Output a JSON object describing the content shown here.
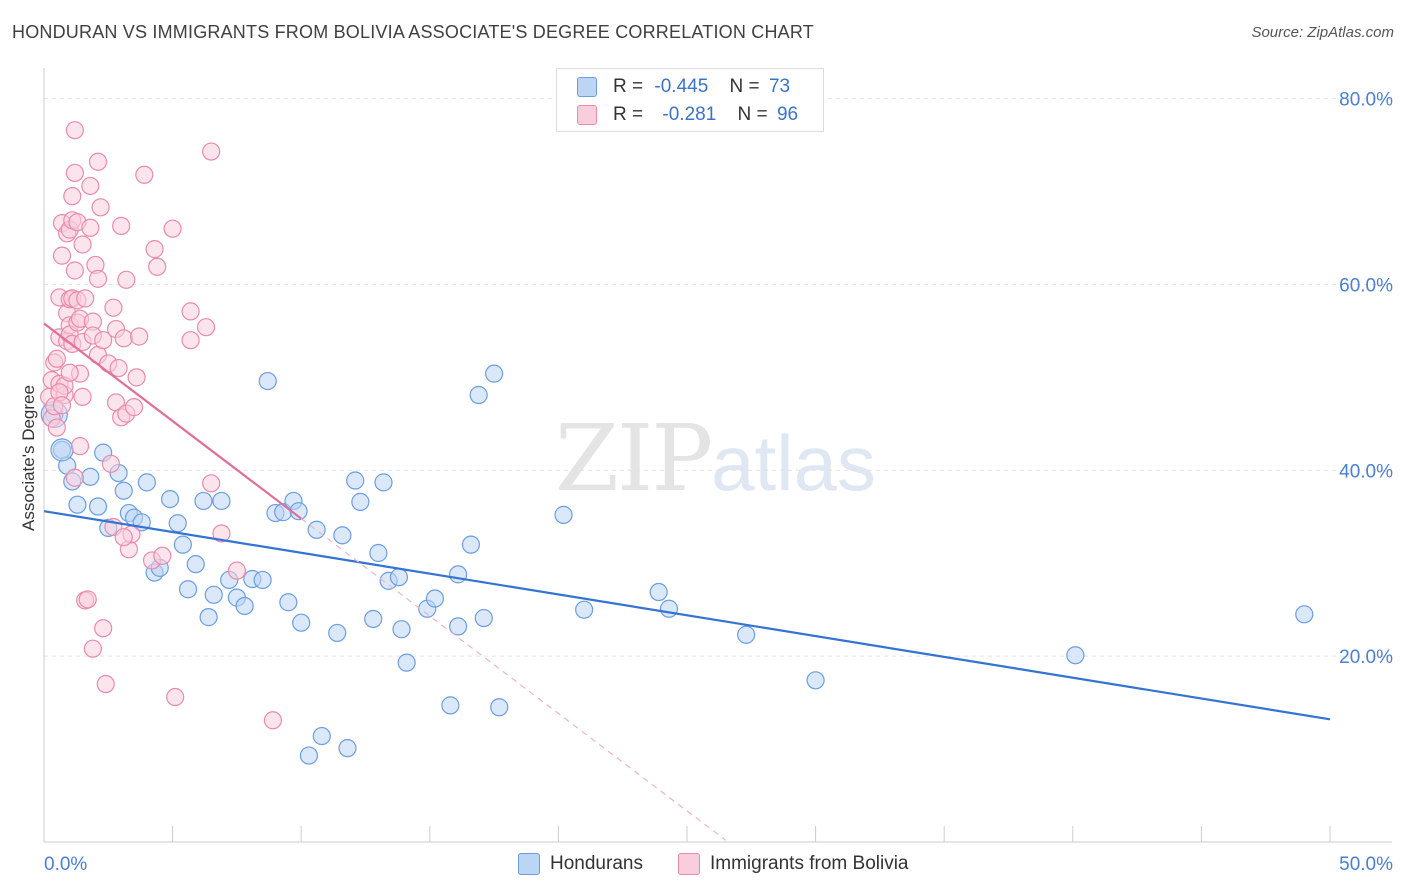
{
  "header": {
    "title": "HONDURAN VS IMMIGRANTS FROM BOLIVIA ASSOCIATE'S DEGREE CORRELATION CHART",
    "source": "Source: ZipAtlas.com"
  },
  "watermark": {
    "zip": "ZIP",
    "atlas": "atlas"
  },
  "legend_top": {
    "rows": [
      {
        "r_label": "R =",
        "r_value": "-0.445",
        "n_label": "N =",
        "n_value": "73",
        "color": "#a8c8f0"
      },
      {
        "r_label": "R =",
        "r_value": "-0.281",
        "n_label": "N =",
        "n_value": "96",
        "color": "#f5b8cb"
      }
    ]
  },
  "legend_bottom": {
    "items": [
      {
        "label": "Hondurans",
        "color": "#a8c8f0"
      },
      {
        "label": "Immigrants from Bolivia",
        "color": "#f5b8cb"
      }
    ]
  },
  "chart_data": {
    "type": "scatter",
    "title": "HONDURAN VS IMMIGRANTS FROM BOLIVIA ASSOCIATE'S DEGREE CORRELATION CHART",
    "xlabel": "",
    "ylabel": "Associate's Degree",
    "xlim": [
      0,
      50
    ],
    "ylim": [
      0,
      82
    ],
    "x_tick_labels": [
      "0.0%",
      "50.0%"
    ],
    "y_ticks": [
      20,
      40,
      60,
      80
    ],
    "y_tick_labels": [
      "20.0%",
      "40.0%",
      "60.0%",
      "80.0%"
    ],
    "grid": true,
    "series": [
      {
        "name": "Hondurans",
        "color": "#6b9ee0",
        "fill": "#bcd5f4",
        "trend": {
          "x": [
            0,
            50
          ],
          "y": [
            35.6,
            13.2
          ],
          "style": "solid"
        },
        "points": [
          [
            0.4,
            46.0
          ],
          [
            0.7,
            42.2
          ],
          [
            0.9,
            40.5
          ],
          [
            1.1,
            38.8
          ],
          [
            1.3,
            36.3
          ],
          [
            1.8,
            39.3
          ],
          [
            2.1,
            36.1
          ],
          [
            2.3,
            41.9
          ],
          [
            2.5,
            33.8
          ],
          [
            2.9,
            39.7
          ],
          [
            3.1,
            37.8
          ],
          [
            3.3,
            35.4
          ],
          [
            3.5,
            34.9
          ],
          [
            3.8,
            34.4
          ],
          [
            4.0,
            38.7
          ],
          [
            4.3,
            29.0
          ],
          [
            4.5,
            29.5
          ],
          [
            4.9,
            36.9
          ],
          [
            5.2,
            34.3
          ],
          [
            5.4,
            32.0
          ],
          [
            5.6,
            27.2
          ],
          [
            5.9,
            29.9
          ],
          [
            6.2,
            36.7
          ],
          [
            6.4,
            24.2
          ],
          [
            6.6,
            26.6
          ],
          [
            6.9,
            36.7
          ],
          [
            7.2,
            28.2
          ],
          [
            7.5,
            26.3
          ],
          [
            7.8,
            25.4
          ],
          [
            8.1,
            28.3
          ],
          [
            8.5,
            28.2
          ],
          [
            8.7,
            49.6
          ],
          [
            9.0,
            35.4
          ],
          [
            9.3,
            35.5
          ],
          [
            9.5,
            25.8
          ],
          [
            9.7,
            36.7
          ],
          [
            9.9,
            35.6
          ],
          [
            10.0,
            23.6
          ],
          [
            10.3,
            9.3
          ],
          [
            10.6,
            33.6
          ],
          [
            10.8,
            11.4
          ],
          [
            11.4,
            22.5
          ],
          [
            11.6,
            33.0
          ],
          [
            11.8,
            10.1
          ],
          [
            12.1,
            38.9
          ],
          [
            12.3,
            36.6
          ],
          [
            12.8,
            24.0
          ],
          [
            13.0,
            31.1
          ],
          [
            13.2,
            38.7
          ],
          [
            13.4,
            28.1
          ],
          [
            13.8,
            28.5
          ],
          [
            13.9,
            22.9
          ],
          [
            14.1,
            19.3
          ],
          [
            14.9,
            25.1
          ],
          [
            15.2,
            26.2
          ],
          [
            15.8,
            14.7
          ],
          [
            16.1,
            23.2
          ],
          [
            16.1,
            28.8
          ],
          [
            16.6,
            32.0
          ],
          [
            16.9,
            48.1
          ],
          [
            17.1,
            24.1
          ],
          [
            17.5,
            50.4
          ],
          [
            17.7,
            14.5
          ],
          [
            20.2,
            35.2
          ],
          [
            21.0,
            25.0
          ],
          [
            23.9,
            26.9
          ],
          [
            24.3,
            25.1
          ],
          [
            27.3,
            22.3
          ],
          [
            30.0,
            17.4
          ],
          [
            40.1,
            20.1
          ],
          [
            49.0,
            24.5
          ]
        ]
      },
      {
        "name": "Immigrants from Bolivia",
        "color": "#e98bab",
        "fill": "#f9cedc",
        "trend": {
          "x": [
            0,
            10.0
          ],
          "y": [
            55.8,
            34.8
          ],
          "style": "solid"
        },
        "trend_ext": {
          "x": [
            10.0,
            26.5
          ],
          "y": [
            34.8,
            0.2
          ],
          "style": "dashed"
        },
        "points": [
          [
            0.2,
            47.9
          ],
          [
            0.3,
            49.7
          ],
          [
            0.3,
            45.6
          ],
          [
            0.4,
            51.6
          ],
          [
            0.4,
            46.9
          ],
          [
            0.5,
            52.0
          ],
          [
            0.5,
            44.6
          ],
          [
            0.6,
            54.3
          ],
          [
            0.6,
            49.3
          ],
          [
            0.6,
            58.6
          ],
          [
            0.7,
            63.1
          ],
          [
            0.7,
            66.6
          ],
          [
            0.8,
            48.1
          ],
          [
            0.8,
            49.1
          ],
          [
            0.9,
            53.9
          ],
          [
            0.9,
            65.5
          ],
          [
            0.9,
            56.9
          ],
          [
            1.0,
            65.9
          ],
          [
            1.0,
            58.4
          ],
          [
            1.0,
            55.6
          ],
          [
            1.0,
            54.6
          ],
          [
            1.1,
            58.5
          ],
          [
            1.1,
            53.6
          ],
          [
            1.1,
            69.5
          ],
          [
            1.1,
            66.9
          ],
          [
            1.2,
            76.6
          ],
          [
            1.2,
            61.5
          ],
          [
            1.2,
            72.0
          ],
          [
            1.3,
            66.7
          ],
          [
            1.3,
            58.3
          ],
          [
            1.3,
            55.9
          ],
          [
            1.4,
            56.3
          ],
          [
            1.4,
            50.4
          ],
          [
            1.5,
            64.3
          ],
          [
            1.5,
            47.9
          ],
          [
            1.5,
            53.8
          ],
          [
            1.6,
            58.5
          ],
          [
            1.6,
            26.0
          ],
          [
            1.7,
            26.1
          ],
          [
            1.8,
            66.1
          ],
          [
            1.8,
            70.6
          ],
          [
            1.9,
            56.0
          ],
          [
            1.9,
            54.5
          ],
          [
            1.9,
            20.8
          ],
          [
            2.0,
            62.1
          ],
          [
            2.1,
            60.6
          ],
          [
            2.1,
            73.2
          ],
          [
            2.1,
            52.4
          ],
          [
            2.2,
            68.3
          ],
          [
            2.3,
            23.0
          ],
          [
            2.3,
            54.0
          ],
          [
            2.4,
            17.0
          ],
          [
            2.5,
            51.5
          ],
          [
            2.6,
            40.7
          ],
          [
            2.7,
            57.5
          ],
          [
            2.8,
            55.2
          ],
          [
            2.8,
            47.3
          ],
          [
            2.9,
            51.0
          ],
          [
            3.0,
            66.3
          ],
          [
            3.0,
            45.7
          ],
          [
            3.1,
            54.2
          ],
          [
            3.2,
            60.5
          ],
          [
            3.2,
            46.1
          ],
          [
            3.3,
            31.5
          ],
          [
            3.4,
            33.1
          ],
          [
            3.5,
            46.8
          ],
          [
            3.6,
            50.0
          ],
          [
            3.7,
            54.4
          ],
          [
            3.9,
            71.8
          ],
          [
            4.2,
            30.3
          ],
          [
            4.3,
            63.8
          ],
          [
            4.4,
            61.9
          ],
          [
            4.6,
            30.8
          ],
          [
            5.0,
            66.0
          ],
          [
            5.1,
            15.6
          ],
          [
            5.7,
            54.0
          ],
          [
            5.7,
            57.1
          ],
          [
            6.3,
            55.4
          ],
          [
            6.5,
            74.3
          ],
          [
            6.5,
            38.6
          ],
          [
            6.9,
            33.2
          ],
          [
            7.5,
            29.2
          ],
          [
            8.9,
            13.1
          ],
          [
            1.4,
            42.6
          ],
          [
            1.2,
            39.2
          ],
          [
            2.7,
            33.9
          ],
          [
            3.1,
            32.8
          ],
          [
            0.6,
            48.4
          ],
          [
            0.7,
            47.0
          ],
          [
            1.0,
            50.5
          ]
        ]
      }
    ]
  }
}
